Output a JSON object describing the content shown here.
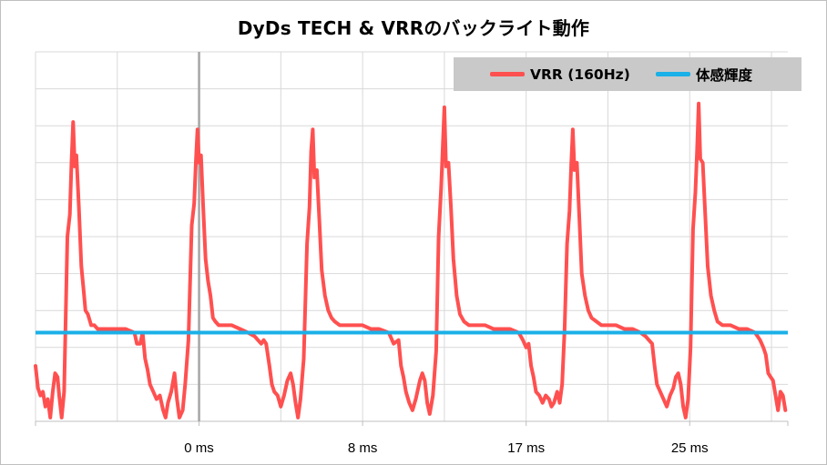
{
  "chart_data": {
    "type": "line",
    "title": "DyDs TECH & VRRのバックライト動作",
    "xlabel": "",
    "ylabel": "",
    "x_unit": "ms",
    "xlim": [
      -10,
      36
    ],
    "ylim": [
      0,
      1
    ],
    "x_ticks": [
      {
        "label": "0 ms",
        "value": 0
      },
      {
        "label": "8 ms",
        "value": 10
      },
      {
        "label": "17 ms",
        "value": 20
      },
      {
        "label": "25 ms",
        "value": 30
      }
    ],
    "reference_line_x": 0,
    "grid": true,
    "legend_position": "top-right",
    "series": [
      {
        "name": "VRR (160Hz)",
        "color": "#ff5050",
        "points": [
          [
            -10.0,
            0.15
          ],
          [
            -9.85,
            0.09
          ],
          [
            -9.7,
            0.07
          ],
          [
            -9.55,
            0.08
          ],
          [
            -9.4,
            0.04
          ],
          [
            -9.25,
            0.06
          ],
          [
            -9.1,
            0.01
          ],
          [
            -8.95,
            0.08
          ],
          [
            -8.8,
            0.13
          ],
          [
            -8.65,
            0.12
          ],
          [
            -8.55,
            0.07
          ],
          [
            -8.4,
            0.01
          ],
          [
            -8.25,
            0.08
          ],
          [
            -8.05,
            0.5
          ],
          [
            -7.9,
            0.56
          ],
          [
            -7.8,
            0.7
          ],
          [
            -7.7,
            0.81
          ],
          [
            -7.6,
            0.69
          ],
          [
            -7.5,
            0.72
          ],
          [
            -7.35,
            0.58
          ],
          [
            -7.2,
            0.42
          ],
          [
            -7.05,
            0.35
          ],
          [
            -6.95,
            0.3
          ],
          [
            -6.8,
            0.29
          ],
          [
            -6.6,
            0.26
          ],
          [
            -6.4,
            0.26
          ],
          [
            -6.2,
            0.25
          ],
          [
            -5.5,
            0.25
          ],
          [
            -5.0,
            0.25
          ],
          [
            -4.5,
            0.25
          ],
          [
            -3.95,
            0.24
          ],
          [
            -3.8,
            0.21
          ],
          [
            -3.6,
            0.21
          ],
          [
            -3.45,
            0.24
          ],
          [
            -3.3,
            0.17
          ],
          [
            -3.15,
            0.14
          ],
          [
            -3.0,
            0.1
          ],
          [
            -2.8,
            0.08
          ],
          [
            -2.6,
            0.06
          ],
          [
            -2.4,
            0.07
          ],
          [
            -2.2,
            0.03
          ],
          [
            -2.05,
            0.01
          ],
          [
            -1.9,
            0.05
          ],
          [
            -1.7,
            0.08
          ],
          [
            -1.5,
            0.13
          ],
          [
            -1.35,
            0.06
          ],
          [
            -1.2,
            0.01
          ],
          [
            -1.0,
            0.03
          ],
          [
            -0.85,
            0.1
          ],
          [
            -0.65,
            0.22
          ],
          [
            -0.45,
            0.53
          ],
          [
            -0.3,
            0.59
          ],
          [
            -0.2,
            0.7
          ],
          [
            -0.1,
            0.79
          ],
          [
            0.0,
            0.7
          ],
          [
            0.12,
            0.72
          ],
          [
            0.25,
            0.58
          ],
          [
            0.4,
            0.44
          ],
          [
            0.55,
            0.38
          ],
          [
            0.7,
            0.34
          ],
          [
            0.85,
            0.28
          ],
          [
            1.0,
            0.27
          ],
          [
            1.2,
            0.26
          ],
          [
            1.5,
            0.26
          ],
          [
            2.0,
            0.26
          ],
          [
            2.5,
            0.25
          ],
          [
            3.0,
            0.24
          ],
          [
            3.4,
            0.23
          ],
          [
            3.6,
            0.22
          ],
          [
            3.8,
            0.21
          ],
          [
            3.95,
            0.22
          ],
          [
            4.1,
            0.21
          ],
          [
            4.3,
            0.15
          ],
          [
            4.45,
            0.1
          ],
          [
            4.6,
            0.08
          ],
          [
            4.8,
            0.07
          ],
          [
            5.0,
            0.04
          ],
          [
            5.2,
            0.07
          ],
          [
            5.4,
            0.11
          ],
          [
            5.6,
            0.13
          ],
          [
            5.75,
            0.1
          ],
          [
            5.9,
            0.05
          ],
          [
            6.05,
            0.01
          ],
          [
            6.2,
            0.06
          ],
          [
            6.4,
            0.17
          ],
          [
            6.6,
            0.48
          ],
          [
            6.75,
            0.58
          ],
          [
            6.85,
            0.73
          ],
          [
            6.95,
            0.79
          ],
          [
            7.05,
            0.66
          ],
          [
            7.2,
            0.68
          ],
          [
            7.35,
            0.55
          ],
          [
            7.5,
            0.41
          ],
          [
            7.7,
            0.34
          ],
          [
            7.9,
            0.3
          ],
          [
            8.1,
            0.28
          ],
          [
            8.3,
            0.27
          ],
          [
            8.6,
            0.26
          ],
          [
            9.0,
            0.26
          ],
          [
            9.5,
            0.26
          ],
          [
            10.0,
            0.26
          ],
          [
            10.5,
            0.25
          ],
          [
            11.0,
            0.25
          ],
          [
            11.6,
            0.24
          ],
          [
            11.9,
            0.21
          ],
          [
            12.2,
            0.22
          ],
          [
            12.35,
            0.15
          ],
          [
            12.5,
            0.12
          ],
          [
            12.65,
            0.08
          ],
          [
            12.85,
            0.05
          ],
          [
            13.05,
            0.03
          ],
          [
            13.25,
            0.06
          ],
          [
            13.5,
            0.11
          ],
          [
            13.65,
            0.13
          ],
          [
            13.8,
            0.11
          ],
          [
            13.95,
            0.05
          ],
          [
            14.1,
            0.02
          ],
          [
            14.3,
            0.07
          ],
          [
            14.5,
            0.19
          ],
          [
            14.65,
            0.5
          ],
          [
            14.8,
            0.63
          ],
          [
            14.9,
            0.74
          ],
          [
            15.0,
            0.85
          ],
          [
            15.1,
            0.69
          ],
          [
            15.25,
            0.7
          ],
          [
            15.4,
            0.58
          ],
          [
            15.55,
            0.44
          ],
          [
            15.75,
            0.34
          ],
          [
            15.95,
            0.29
          ],
          [
            16.2,
            0.27
          ],
          [
            16.5,
            0.26
          ],
          [
            17.0,
            0.26
          ],
          [
            17.5,
            0.26
          ],
          [
            18.0,
            0.25
          ],
          [
            18.5,
            0.25
          ],
          [
            19.0,
            0.25
          ],
          [
            19.55,
            0.24
          ],
          [
            19.8,
            0.22
          ],
          [
            20.0,
            0.2
          ],
          [
            20.15,
            0.21
          ],
          [
            20.3,
            0.15
          ],
          [
            20.45,
            0.12
          ],
          [
            20.6,
            0.08
          ],
          [
            20.8,
            0.07
          ],
          [
            21.0,
            0.05
          ],
          [
            21.2,
            0.07
          ],
          [
            21.4,
            0.06
          ],
          [
            21.55,
            0.04
          ],
          [
            21.7,
            0.05
          ],
          [
            21.9,
            0.08
          ],
          [
            22.05,
            0.05
          ],
          [
            22.2,
            0.1
          ],
          [
            22.35,
            0.25
          ],
          [
            22.5,
            0.48
          ],
          [
            22.65,
            0.57
          ],
          [
            22.75,
            0.69
          ],
          [
            22.85,
            0.79
          ],
          [
            22.95,
            0.68
          ],
          [
            23.1,
            0.7
          ],
          [
            23.25,
            0.55
          ],
          [
            23.4,
            0.4
          ],
          [
            23.6,
            0.34
          ],
          [
            23.8,
            0.3
          ],
          [
            24.0,
            0.28
          ],
          [
            24.3,
            0.27
          ],
          [
            24.6,
            0.26
          ],
          [
            25.0,
            0.26
          ],
          [
            25.5,
            0.26
          ],
          [
            26.0,
            0.25
          ],
          [
            26.5,
            0.25
          ],
          [
            27.0,
            0.24
          ],
          [
            27.3,
            0.23
          ],
          [
            27.5,
            0.22
          ],
          [
            27.7,
            0.21
          ],
          [
            27.85,
            0.15
          ],
          [
            28.0,
            0.1
          ],
          [
            28.2,
            0.08
          ],
          [
            28.4,
            0.06
          ],
          [
            28.6,
            0.04
          ],
          [
            28.8,
            0.07
          ],
          [
            29.0,
            0.09
          ],
          [
            29.15,
            0.12
          ],
          [
            29.3,
            0.13
          ],
          [
            29.45,
            0.1
          ],
          [
            29.6,
            0.04
          ],
          [
            29.75,
            0.01
          ],
          [
            29.9,
            0.06
          ],
          [
            30.05,
            0.2
          ],
          [
            30.2,
            0.52
          ],
          [
            30.35,
            0.62
          ],
          [
            30.45,
            0.73
          ],
          [
            30.55,
            0.86
          ],
          [
            30.65,
            0.71
          ],
          [
            30.8,
            0.7
          ],
          [
            30.95,
            0.56
          ],
          [
            31.1,
            0.42
          ],
          [
            31.3,
            0.34
          ],
          [
            31.5,
            0.3
          ],
          [
            31.7,
            0.27
          ],
          [
            32.0,
            0.26
          ],
          [
            32.5,
            0.26
          ],
          [
            33.0,
            0.25
          ],
          [
            33.5,
            0.25
          ],
          [
            34.0,
            0.24
          ],
          [
            34.3,
            0.22
          ],
          [
            34.5,
            0.2
          ],
          [
            34.65,
            0.18
          ],
          [
            34.8,
            0.13
          ],
          [
            34.95,
            0.12
          ],
          [
            35.1,
            0.11
          ],
          [
            35.25,
            0.07
          ],
          [
            35.4,
            0.03
          ],
          [
            35.55,
            0.08
          ],
          [
            35.7,
            0.07
          ],
          [
            35.85,
            0.03
          ]
        ]
      },
      {
        "name": "体感輝度",
        "color": "#1ab0e8",
        "y": 0.24
      }
    ]
  }
}
